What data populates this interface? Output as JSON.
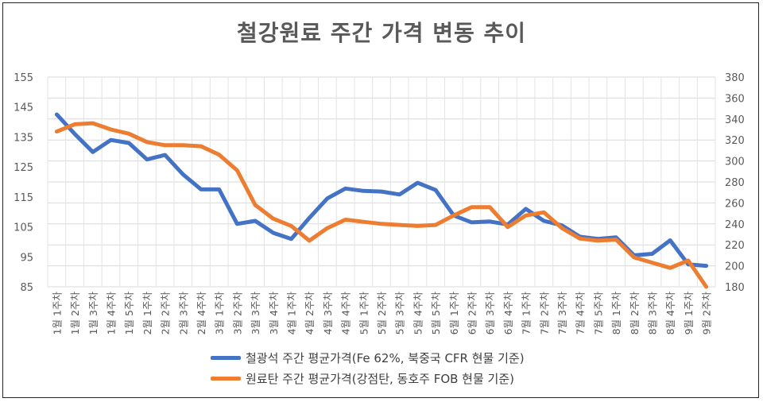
{
  "chart_data": {
    "type": "line",
    "title": "철강원료 주간 가격 변동 추이",
    "categories": [
      "1월 1주차",
      "1월 2주차",
      "1월 3주차",
      "1월 4주차",
      "1월 5주차",
      "2월 1주차",
      "2월 2주차",
      "2월 3주차",
      "2월 4주차",
      "3월 1주차",
      "3월 2주차",
      "3월 3주차",
      "3월 4주차",
      "4월 1주차",
      "4월 2주차",
      "4월 3주차",
      "4월 4주차",
      "5월 1주차",
      "5월 2주차",
      "5월 3주차",
      "5월 4주차",
      "5월 5주차",
      "6월 1주차",
      "6월 2주차",
      "6월 3주차",
      "6월 4주차",
      "7월 1주차",
      "7월 2주차",
      "7월 3주차",
      "7월 4주차",
      "7월 5주차",
      "8월 1주차",
      "8월 2주차",
      "8월 3주차",
      "8월 4주차",
      "9월 1주차",
      "9월 2주차"
    ],
    "y_left": {
      "min": 85,
      "max": 155,
      "ticks": [
        85,
        95,
        105,
        115,
        125,
        135,
        145,
        155
      ]
    },
    "y_right": {
      "min": 180,
      "max": 380,
      "ticks": [
        180,
        200,
        220,
        240,
        260,
        280,
        300,
        320,
        340,
        360,
        380
      ]
    },
    "grid": true,
    "legend_position": "bottom",
    "series": [
      {
        "name": "철광석 주간 평균가격(Fe 62%, 북중국 CFR 현물 기준)",
        "axis": "left",
        "color": "#4472C4",
        "values": [
          142.5,
          136,
          130,
          134,
          133,
          127.5,
          129,
          122.5,
          117.5,
          117.5,
          106,
          107,
          103,
          101,
          108,
          114.5,
          117.8,
          117,
          116.8,
          115.8,
          119.7,
          117.3,
          108.8,
          106.5,
          106.8,
          105.8,
          111,
          107,
          105.5,
          101.7,
          101,
          101.5,
          95.5,
          96,
          100.5,
          92.5,
          92
        ]
      },
      {
        "name": "원료탄 주간 평균가격(강점탄, 동호주 FOB 현물 기준)",
        "axis": "right",
        "color": "#ED7D31",
        "values": [
          328,
          335,
          336,
          330,
          326,
          318,
          315,
          315,
          314,
          306,
          291,
          258,
          245,
          238,
          224,
          236,
          244,
          242,
          240,
          239,
          238,
          239,
          248,
          256,
          256,
          237,
          248,
          251,
          236,
          226,
          224,
          225,
          208,
          203,
          198,
          205,
          178
        ]
      }
    ]
  }
}
